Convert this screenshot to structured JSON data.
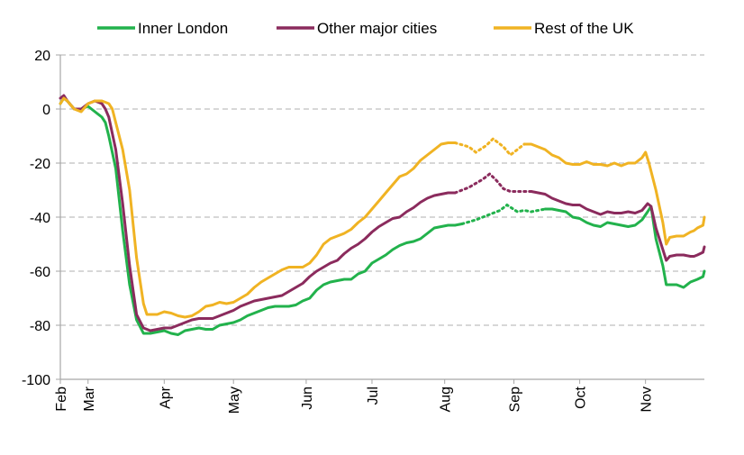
{
  "chart_data": {
    "type": "line",
    "title": "",
    "xlabel": "",
    "ylabel": "",
    "ylim": [
      -100,
      20
    ],
    "yticks": [
      20,
      0,
      -20,
      -40,
      -60,
      -80,
      -100
    ],
    "x_unit": "week",
    "xticks": [
      {
        "label": "Feb",
        "x": 0
      },
      {
        "label": "Mar",
        "x": 4
      },
      {
        "label": "Apr",
        "x": 15
      },
      {
        "label": "May",
        "x": 25
      },
      {
        "label": "Jun",
        "x": 35.5
      },
      {
        "label": "Jul",
        "x": 45
      },
      {
        "label": "Aug",
        "x": 55.5
      },
      {
        "label": "Sep",
        "x": 65.5
      },
      {
        "label": "Oct",
        "x": 75
      },
      {
        "label": "Nov",
        "x": 84.5
      }
    ],
    "xlim": [
      0,
      92
    ],
    "grid": "horizontal-dashed",
    "legend_position": "top",
    "series": [
      {
        "name": "Inner London",
        "color": "#22b24c",
        "values": [
          [
            0,
            2
          ],
          [
            0.5,
            4
          ],
          [
            1,
            3
          ],
          [
            2,
            0
          ],
          [
            3,
            0
          ],
          [
            4,
            1
          ],
          [
            5,
            -1
          ],
          [
            6,
            -3
          ],
          [
            6.5,
            -5
          ],
          [
            7,
            -10
          ],
          [
            8,
            -22
          ],
          [
            9,
            -45
          ],
          [
            10,
            -65
          ],
          [
            11,
            -78
          ],
          [
            12,
            -83
          ],
          [
            13,
            -83
          ],
          [
            14,
            -82.5
          ],
          [
            15,
            -82
          ],
          [
            16,
            -83
          ],
          [
            17,
            -83.5
          ],
          [
            18,
            -82
          ],
          [
            19,
            -81.5
          ],
          [
            20,
            -81
          ],
          [
            21,
            -81.5
          ],
          [
            22,
            -81.5
          ],
          [
            23,
            -80
          ],
          [
            24,
            -79.5
          ],
          [
            25,
            -79
          ],
          [
            26,
            -78
          ],
          [
            27,
            -76.5
          ],
          [
            28,
            -75.5
          ],
          [
            29,
            -74.5
          ],
          [
            30,
            -73.5
          ],
          [
            31,
            -73
          ],
          [
            32,
            -73
          ],
          [
            33,
            -73
          ],
          [
            34,
            -72.5
          ],
          [
            35,
            -71
          ],
          [
            36,
            -70
          ],
          [
            37,
            -67
          ],
          [
            38,
            -65
          ],
          [
            39,
            -64
          ],
          [
            40,
            -63.5
          ],
          [
            41,
            -63
          ],
          [
            42,
            -63
          ],
          [
            43,
            -61
          ],
          [
            44,
            -60
          ],
          [
            45,
            -57
          ],
          [
            46,
            -55.5
          ],
          [
            47,
            -54
          ],
          [
            48,
            -52
          ],
          [
            49,
            -50.5
          ],
          [
            50,
            -49.5
          ],
          [
            51,
            -49
          ],
          [
            52,
            -48
          ],
          [
            53,
            -46
          ],
          [
            54,
            -44
          ],
          [
            55,
            -43.5
          ],
          [
            56,
            -43
          ],
          [
            57,
            -43
          ],
          [
            58,
            -42.5
          ]
        ],
        "dotted_values": [
          [
            58,
            -42.5
          ],
          [
            60,
            -41
          ],
          [
            62,
            -39
          ],
          [
            63.5,
            -37.5
          ],
          [
            64.5,
            -35.5
          ],
          [
            66,
            -38
          ],
          [
            67,
            -37.5
          ],
          [
            68,
            -38
          ],
          [
            70,
            -37
          ]
        ],
        "values_after": [
          [
            70,
            -37
          ],
          [
            71,
            -37
          ],
          [
            72,
            -37.5
          ],
          [
            73,
            -38
          ],
          [
            74,
            -40
          ],
          [
            75,
            -40.5
          ],
          [
            76,
            -42
          ],
          [
            77,
            -43
          ],
          [
            78,
            -43.5
          ],
          [
            79,
            -42
          ],
          [
            80,
            -42.5
          ],
          [
            81,
            -43
          ],
          [
            82,
            -43.5
          ],
          [
            83,
            -43
          ],
          [
            84,
            -41
          ],
          [
            84.8,
            -38
          ],
          [
            85.3,
            -36
          ],
          [
            86,
            -48
          ],
          [
            87,
            -58
          ],
          [
            87.5,
            -65
          ],
          [
            88,
            -65
          ],
          [
            89,
            -65
          ],
          [
            90,
            -66
          ],
          [
            91,
            -64
          ],
          [
            91.5,
            -63.5
          ],
          [
            92,
            -63
          ],
          [
            92.8,
            -62
          ],
          [
            93,
            -60
          ]
        ]
      },
      {
        "name": "Other major cities",
        "color": "#8b2b5d",
        "values": [
          [
            0,
            4
          ],
          [
            0.5,
            5
          ],
          [
            1,
            3
          ],
          [
            2,
            0
          ],
          [
            3,
            0
          ],
          [
            4,
            2
          ],
          [
            5,
            3
          ],
          [
            6,
            2
          ],
          [
            6.5,
            0
          ],
          [
            7,
            -3
          ],
          [
            8,
            -15
          ],
          [
            9,
            -35
          ],
          [
            10,
            -58
          ],
          [
            11,
            -76
          ],
          [
            12,
            -81
          ],
          [
            13,
            -82
          ],
          [
            14,
            -81.5
          ],
          [
            15,
            -81
          ],
          [
            16,
            -81
          ],
          [
            17,
            -80
          ],
          [
            18,
            -79
          ],
          [
            19,
            -78
          ],
          [
            20,
            -77.5
          ],
          [
            21,
            -77.5
          ],
          [
            22,
            -77.5
          ],
          [
            23,
            -76.5
          ],
          [
            24,
            -75.5
          ],
          [
            25,
            -74.5
          ],
          [
            26,
            -73
          ],
          [
            27,
            -72
          ],
          [
            28,
            -71
          ],
          [
            29,
            -70.5
          ],
          [
            30,
            -70
          ],
          [
            31,
            -69.5
          ],
          [
            32,
            -69
          ],
          [
            33,
            -67.5
          ],
          [
            34,
            -66
          ],
          [
            35,
            -64.5
          ],
          [
            36,
            -62
          ],
          [
            37,
            -60
          ],
          [
            38,
            -58.5
          ],
          [
            39,
            -57
          ],
          [
            40,
            -56
          ],
          [
            41,
            -53.5
          ],
          [
            42,
            -51.5
          ],
          [
            43,
            -50
          ],
          [
            44,
            -48
          ],
          [
            45,
            -45.5
          ],
          [
            46,
            -43.5
          ],
          [
            47,
            -42
          ],
          [
            48,
            -40.5
          ],
          [
            49,
            -40
          ],
          [
            50,
            -38
          ],
          [
            51,
            -36.5
          ],
          [
            52,
            -34.5
          ],
          [
            53,
            -33
          ],
          [
            54,
            -32
          ],
          [
            55,
            -31.5
          ],
          [
            56,
            -31
          ],
          [
            57,
            -31
          ]
        ],
        "dotted_values": [
          [
            57,
            -31
          ],
          [
            59,
            -29
          ],
          [
            61,
            -26
          ],
          [
            62,
            -24
          ],
          [
            63,
            -26.5
          ],
          [
            64,
            -29.5
          ],
          [
            65,
            -30.5
          ],
          [
            66,
            -30.5
          ],
          [
            67,
            -30.5
          ],
          [
            68,
            -30.5
          ]
        ],
        "values_after": [
          [
            68,
            -30.5
          ],
          [
            69,
            -31
          ],
          [
            70,
            -31.5
          ],
          [
            71,
            -33
          ],
          [
            72,
            -34
          ],
          [
            73,
            -35
          ],
          [
            74,
            -35.5
          ],
          [
            75,
            -35.5
          ],
          [
            76,
            -37
          ],
          [
            77,
            -38
          ],
          [
            78,
            -39
          ],
          [
            79,
            -38
          ],
          [
            80,
            -38.5
          ],
          [
            81,
            -38.5
          ],
          [
            82,
            -38
          ],
          [
            83,
            -38.5
          ],
          [
            84,
            -37.5
          ],
          [
            84.8,
            -35
          ],
          [
            85.3,
            -36
          ],
          [
            86,
            -44
          ],
          [
            87,
            -52
          ],
          [
            87.5,
            -56
          ],
          [
            88,
            -54.5
          ],
          [
            89,
            -54
          ],
          [
            90,
            -54
          ],
          [
            91,
            -54.5
          ],
          [
            91.5,
            -54.5
          ],
          [
            92,
            -54
          ],
          [
            92.8,
            -53
          ],
          [
            93,
            -51
          ]
        ]
      },
      {
        "name": "Rest of the UK",
        "color": "#f0b323",
        "values": [
          [
            0,
            2
          ],
          [
            0.5,
            4
          ],
          [
            1,
            3
          ],
          [
            2,
            0
          ],
          [
            3,
            -1
          ],
          [
            4,
            2
          ],
          [
            5,
            3
          ],
          [
            6,
            3
          ],
          [
            7,
            2
          ],
          [
            7.5,
            0
          ],
          [
            8,
            -5
          ],
          [
            9,
            -15
          ],
          [
            10,
            -30
          ],
          [
            11,
            -55
          ],
          [
            12,
            -72
          ],
          [
            12.5,
            -76
          ],
          [
            13,
            -76
          ],
          [
            14,
            -76
          ],
          [
            15,
            -75
          ],
          [
            16,
            -75.5
          ],
          [
            17,
            -76.5
          ],
          [
            18,
            -77
          ],
          [
            19,
            -76.5
          ],
          [
            20,
            -75
          ],
          [
            21,
            -73
          ],
          [
            22,
            -72.5
          ],
          [
            23,
            -71.5
          ],
          [
            24,
            -72
          ],
          [
            25,
            -71.5
          ],
          [
            26,
            -70
          ],
          [
            27,
            -68.5
          ],
          [
            28,
            -66
          ],
          [
            29,
            -64
          ],
          [
            30,
            -62.5
          ],
          [
            31,
            -61
          ],
          [
            32,
            -59.5
          ],
          [
            33,
            -58.5
          ],
          [
            34,
            -58.5
          ],
          [
            35,
            -58.5
          ],
          [
            36,
            -57
          ],
          [
            37,
            -54
          ],
          [
            38,
            -50
          ],
          [
            39,
            -48
          ],
          [
            40,
            -47
          ],
          [
            41,
            -46
          ],
          [
            42,
            -44.5
          ],
          [
            43,
            -42
          ],
          [
            44,
            -40
          ],
          [
            45,
            -37
          ],
          [
            46,
            -34
          ],
          [
            47,
            -31
          ],
          [
            48,
            -28
          ],
          [
            49,
            -25
          ],
          [
            50,
            -24
          ],
          [
            51,
            -22
          ],
          [
            52,
            -19
          ],
          [
            53,
            -17
          ],
          [
            54,
            -15
          ],
          [
            55,
            -13
          ],
          [
            56,
            -12.5
          ],
          [
            57,
            -12.5
          ]
        ],
        "dotted_values": [
          [
            57,
            -12.5
          ],
          [
            59,
            -14
          ],
          [
            60,
            -16
          ],
          [
            61.5,
            -13.5
          ],
          [
            62.5,
            -11
          ],
          [
            64,
            -14
          ],
          [
            65,
            -17
          ],
          [
            66,
            -15
          ],
          [
            67,
            -13
          ]
        ],
        "values_after": [
          [
            67,
            -13
          ],
          [
            68,
            -13
          ],
          [
            69,
            -14
          ],
          [
            70,
            -15
          ],
          [
            71,
            -17
          ],
          [
            72,
            -18
          ],
          [
            73,
            -20
          ],
          [
            74,
            -20.5
          ],
          [
            75,
            -20.5
          ],
          [
            76,
            -19.5
          ],
          [
            77,
            -20.5
          ],
          [
            78,
            -20.5
          ],
          [
            79,
            -21
          ],
          [
            80,
            -20
          ],
          [
            81,
            -21
          ],
          [
            82,
            -20
          ],
          [
            83,
            -20
          ],
          [
            84,
            -18
          ],
          [
            84.5,
            -16
          ],
          [
            85,
            -20
          ],
          [
            86,
            -30
          ],
          [
            87,
            -42
          ],
          [
            87.5,
            -50
          ],
          [
            88,
            -47.5
          ],
          [
            89,
            -47
          ],
          [
            90,
            -47
          ],
          [
            91,
            -45.5
          ],
          [
            91.5,
            -45
          ],
          [
            92,
            -44
          ],
          [
            92.8,
            -43
          ],
          [
            93,
            -40
          ]
        ]
      }
    ]
  }
}
